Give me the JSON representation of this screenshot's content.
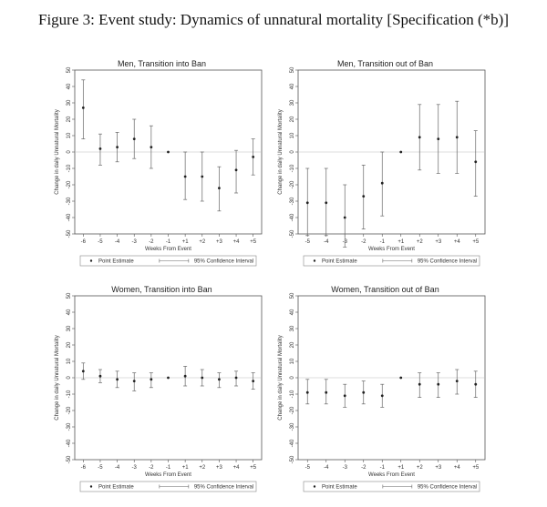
{
  "figure": {
    "title": "Figure 3: Event study: Dynamics of unnatural mortality [Specification (*b)]"
  },
  "chart_data": [
    {
      "type": "scatter",
      "title": "Men, Transition into Ban",
      "xlabel": "Weeks From Event",
      "ylabel": "Change in daily Unnatural Mortality",
      "ylim": [
        -50,
        50
      ],
      "yticks": [
        -50,
        -40,
        -30,
        -20,
        -10,
        0,
        10,
        20,
        30,
        40,
        50
      ],
      "reference_line": 0,
      "categories": [
        "-6",
        "-5",
        "-4",
        "-3",
        "-2",
        "-1",
        "+1",
        "+2",
        "+3",
        "+4",
        "+5"
      ],
      "series": [
        {
          "name": "Point Estimate",
          "values": [
            27,
            2,
            3,
            8,
            3,
            0,
            -15,
            -15,
            -22,
            -11,
            -3
          ]
        },
        {
          "name": "95% Confidence Interval",
          "lower": [
            8,
            -8,
            -6,
            -4,
            -10,
            0,
            -29,
            -30,
            -36,
            -25,
            -14
          ],
          "upper": [
            44,
            11,
            12,
            20,
            16,
            0,
            0,
            0,
            -9,
            1,
            8
          ]
        }
      ],
      "legend": {
        "position": "bottom",
        "entries": [
          "Point Estimate",
          "95% Confidence Interval"
        ]
      }
    },
    {
      "type": "scatter",
      "title": "Men, Transition out of Ban",
      "xlabel": "Weeks From Event",
      "ylabel": "Change in daily Unnatural Mortality",
      "ylim": [
        -50,
        50
      ],
      "yticks": [
        -50,
        -40,
        -30,
        -20,
        -10,
        0,
        10,
        20,
        30,
        40,
        50
      ],
      "reference_line": 0,
      "categories": [
        "-5",
        "-4",
        "-3",
        "-2",
        "-1",
        "+1",
        "+2",
        "+3",
        "+4",
        "+5"
      ],
      "series": [
        {
          "name": "Point Estimate",
          "values": [
            -31,
            -31,
            -40,
            -27,
            -19,
            0,
            9,
            8,
            9,
            -6
          ]
        },
        {
          "name": "95% Confidence Interval",
          "lower": [
            -51,
            -51,
            -58,
            -47,
            -39,
            0,
            -11,
            -13,
            -13,
            -27
          ],
          "upper": [
            -10,
            -10,
            -20,
            -8,
            0,
            0,
            29,
            29,
            31,
            13
          ]
        }
      ],
      "legend": {
        "position": "bottom",
        "entries": [
          "Point Estimate",
          "95% Confidence Interval"
        ]
      }
    },
    {
      "type": "scatter",
      "title": "Women, Transition into Ban",
      "xlabel": "Weeks From Event",
      "ylabel": "Change in daily Unnatural Mortality",
      "ylim": [
        -50,
        50
      ],
      "yticks": [
        -50,
        -40,
        -30,
        -20,
        -10,
        0,
        10,
        20,
        30,
        40,
        50
      ],
      "reference_line": 0,
      "categories": [
        "-6",
        "-5",
        "-4",
        "-3",
        "-2",
        "-1",
        "+1",
        "+2",
        "+3",
        "+4",
        "+5"
      ],
      "series": [
        {
          "name": "Point Estimate",
          "values": [
            4,
            1,
            -1,
            -2,
            -1,
            0,
            1,
            0,
            -1,
            0,
            -2
          ]
        },
        {
          "name": "95% Confidence Interval",
          "lower": [
            -1,
            -3,
            -6,
            -8,
            -6,
            0,
            -5,
            -5,
            -6,
            -5,
            -7
          ],
          "upper": [
            9,
            5,
            4,
            3,
            3,
            0,
            7,
            5,
            3,
            4,
            3
          ]
        }
      ],
      "legend": {
        "position": "bottom",
        "entries": [
          "Point Estimate",
          "95% Confidence Interval"
        ]
      }
    },
    {
      "type": "scatter",
      "title": "Women, Transition out of Ban",
      "xlabel": "Weeks From Event",
      "ylabel": "Change in daily Unnatural Mortality",
      "ylim": [
        -50,
        50
      ],
      "yticks": [
        -50,
        -40,
        -30,
        -20,
        -10,
        0,
        10,
        20,
        30,
        40,
        50
      ],
      "reference_line": 0,
      "categories": [
        "-5",
        "-4",
        "-3",
        "-2",
        "-1",
        "+1",
        "+2",
        "+3",
        "+4",
        "+5"
      ],
      "series": [
        {
          "name": "Point Estimate",
          "values": [
            -9,
            -9,
            -11,
            -9,
            -11,
            0,
            -4,
            -4,
            -2,
            -4
          ]
        },
        {
          "name": "95% Confidence Interval",
          "lower": [
            -16,
            -16,
            -18,
            -16,
            -18,
            0,
            -12,
            -12,
            -10,
            -12
          ],
          "upper": [
            -1,
            -1,
            -4,
            -2,
            -4,
            0,
            3,
            3,
            5,
            4
          ]
        }
      ],
      "legend": {
        "position": "bottom",
        "entries": [
          "Point Estimate",
          "95% Confidence Interval"
        ]
      }
    }
  ]
}
